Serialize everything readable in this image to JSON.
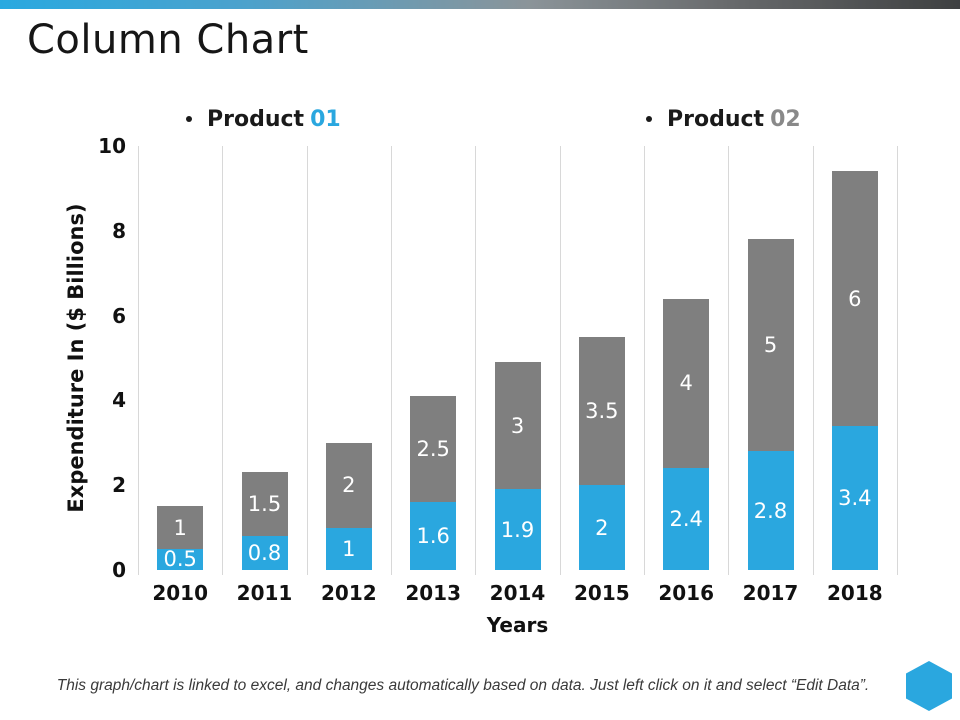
{
  "title": "Column Chart",
  "legend": {
    "items": [
      {
        "prefix": "Product",
        "number": "01",
        "color": "#2aa7df"
      },
      {
        "prefix": "Product",
        "number": "02",
        "color": "#898989"
      }
    ]
  },
  "chart_data": {
    "type": "bar",
    "stacked": true,
    "categories": [
      "2010",
      "2011",
      "2012",
      "2013",
      "2014",
      "2015",
      "2016",
      "2017",
      "2018"
    ],
    "series": [
      {
        "name": "Product 01",
        "color": "#2aa7df",
        "values": [
          0.5,
          0.8,
          1,
          1.6,
          1.9,
          2,
          2.4,
          2.8,
          3.4
        ]
      },
      {
        "name": "Product 02",
        "color": "#7f7f7f",
        "values": [
          1,
          1.5,
          2,
          2.5,
          3,
          3.5,
          4,
          5,
          6
        ]
      }
    ],
    "xlabel": "Years",
    "ylabel": "Expenditure In ($ Billions)",
    "ylim": [
      0,
      10
    ],
    "yticks": [
      0,
      2,
      4,
      6,
      8,
      10
    ],
    "legend_position": "top",
    "grid": "vertical-category-lines",
    "data_labels": "white, centered inside each segment"
  },
  "footer": {
    "note": "This graph/chart is linked to excel, and changes automatically based on data. Just left click on it and select “Edit Data”."
  },
  "branding": {
    "hexagon_color": "#2aa7df"
  }
}
